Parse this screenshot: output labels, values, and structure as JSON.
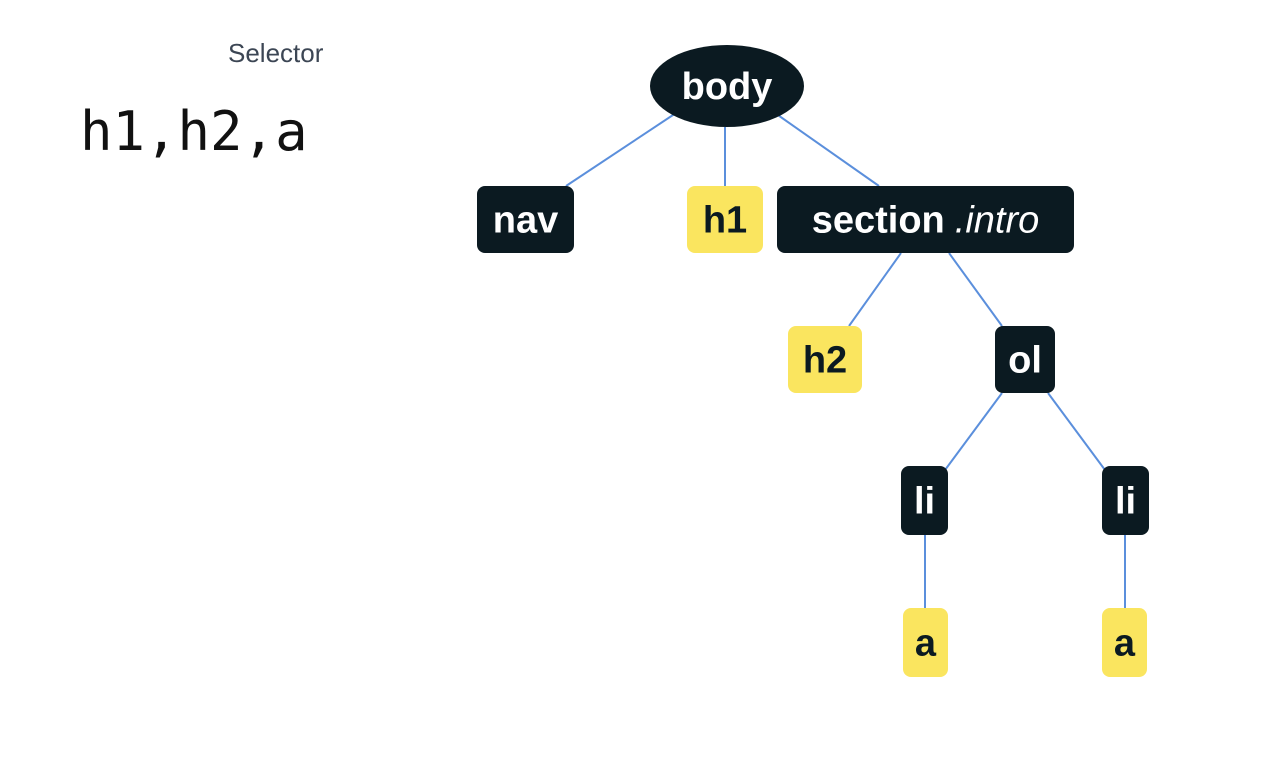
{
  "selector": {
    "label": "Selector",
    "value": "h1,h2,a"
  },
  "tree": {
    "nodes": [
      {
        "id": "body",
        "tag": "body",
        "cls": "",
        "highlighted": false
      },
      {
        "id": "nav",
        "tag": "nav",
        "cls": "",
        "highlighted": false
      },
      {
        "id": "h1",
        "tag": "h1",
        "cls": "",
        "highlighted": true
      },
      {
        "id": "section",
        "tag": "section",
        "cls": ".intro",
        "highlighted": false
      },
      {
        "id": "h2",
        "tag": "h2",
        "cls": "",
        "highlighted": true
      },
      {
        "id": "ol",
        "tag": "ol",
        "cls": "",
        "highlighted": false
      },
      {
        "id": "li1",
        "tag": "li",
        "cls": "",
        "highlighted": false
      },
      {
        "id": "li2",
        "tag": "li",
        "cls": "",
        "highlighted": false
      },
      {
        "id": "a1",
        "tag": "a",
        "cls": "",
        "highlighted": true
      },
      {
        "id": "a2",
        "tag": "a",
        "cls": "",
        "highlighted": true
      }
    ],
    "edges": [
      [
        "body",
        "nav"
      ],
      [
        "body",
        "h1"
      ],
      [
        "body",
        "section"
      ],
      [
        "section",
        "h2"
      ],
      [
        "section",
        "ol"
      ],
      [
        "ol",
        "li1"
      ],
      [
        "ol",
        "li2"
      ],
      [
        "li1",
        "a1"
      ],
      [
        "li2",
        "a2"
      ]
    ],
    "colors": {
      "node": "#0b1a21",
      "node_text": "#ffffff",
      "highlight": "#fae55f",
      "highlight_text": "#0b1a21",
      "edge": "#5b8fdc"
    }
  }
}
